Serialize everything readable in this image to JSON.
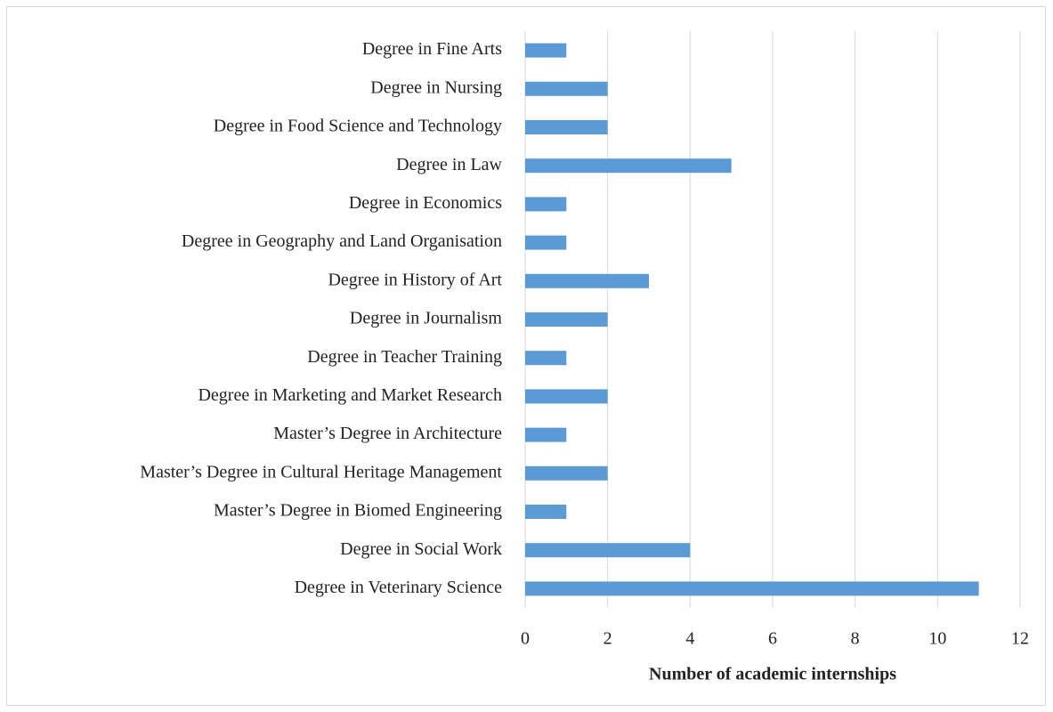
{
  "chart_data": {
    "type": "bar",
    "orientation": "horizontal",
    "categories": [
      "Degree in Fine Arts",
      "Degree in Nursing",
      "Degree in Food Science and Technology",
      "Degree in Law",
      "Degree in Economics",
      "Degree in Geography and Land Organisation",
      "Degree in History of Art",
      "Degree in Journalism",
      "Degree in Teacher Training",
      "Degree in Marketing and Market Research",
      "Master’s Degree in Architecture",
      "Master’s Degree in Cultural Heritage Management",
      "Master’s Degree in Biomed Engineering",
      "Degree in Social Work",
      "Degree in Veterinary Science"
    ],
    "values": [
      1,
      2,
      2,
      5,
      1,
      1,
      3,
      2,
      1,
      2,
      1,
      2,
      1,
      4,
      11
    ],
    "color": "#5b9bd5",
    "x_label": "Number of academic internships",
    "xlim": [
      0,
      12
    ],
    "xticks": [
      0,
      2,
      4,
      6,
      8,
      10,
      12
    ],
    "grid": true
  }
}
